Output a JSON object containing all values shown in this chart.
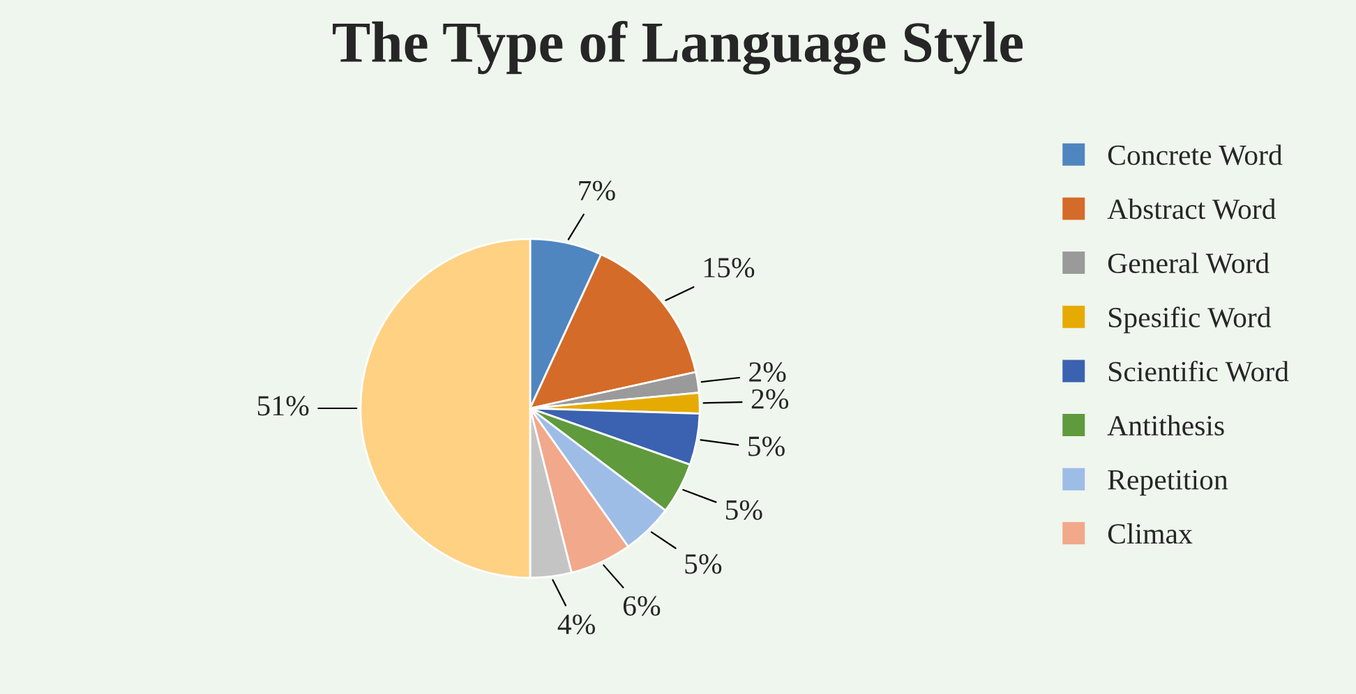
{
  "chart_data": {
    "type": "pie",
    "title": "The Type of Language Style",
    "categories": [
      "Concrete Word",
      "Abstract Word",
      "General Word",
      "Spesific Word",
      "Scientific Word",
      "Antithesis",
      "Repetition",
      "Climax",
      null,
      null
    ],
    "values": [
      7,
      15,
      2,
      2,
      5,
      5,
      5,
      6,
      4,
      51
    ],
    "colors": [
      "#4f86c0",
      "#d46b28",
      "#9a9a9a",
      "#e6ab02",
      "#3a62b0",
      "#5f9a3c",
      "#9dbde6",
      "#f2a88a",
      "#c4c4c4",
      "#ffd183"
    ],
    "value_labels": [
      "7%",
      "15%",
      "2%",
      "2%",
      "5%",
      "5%",
      "5%",
      "6%",
      "4%",
      "51%"
    ],
    "legend": "right"
  }
}
